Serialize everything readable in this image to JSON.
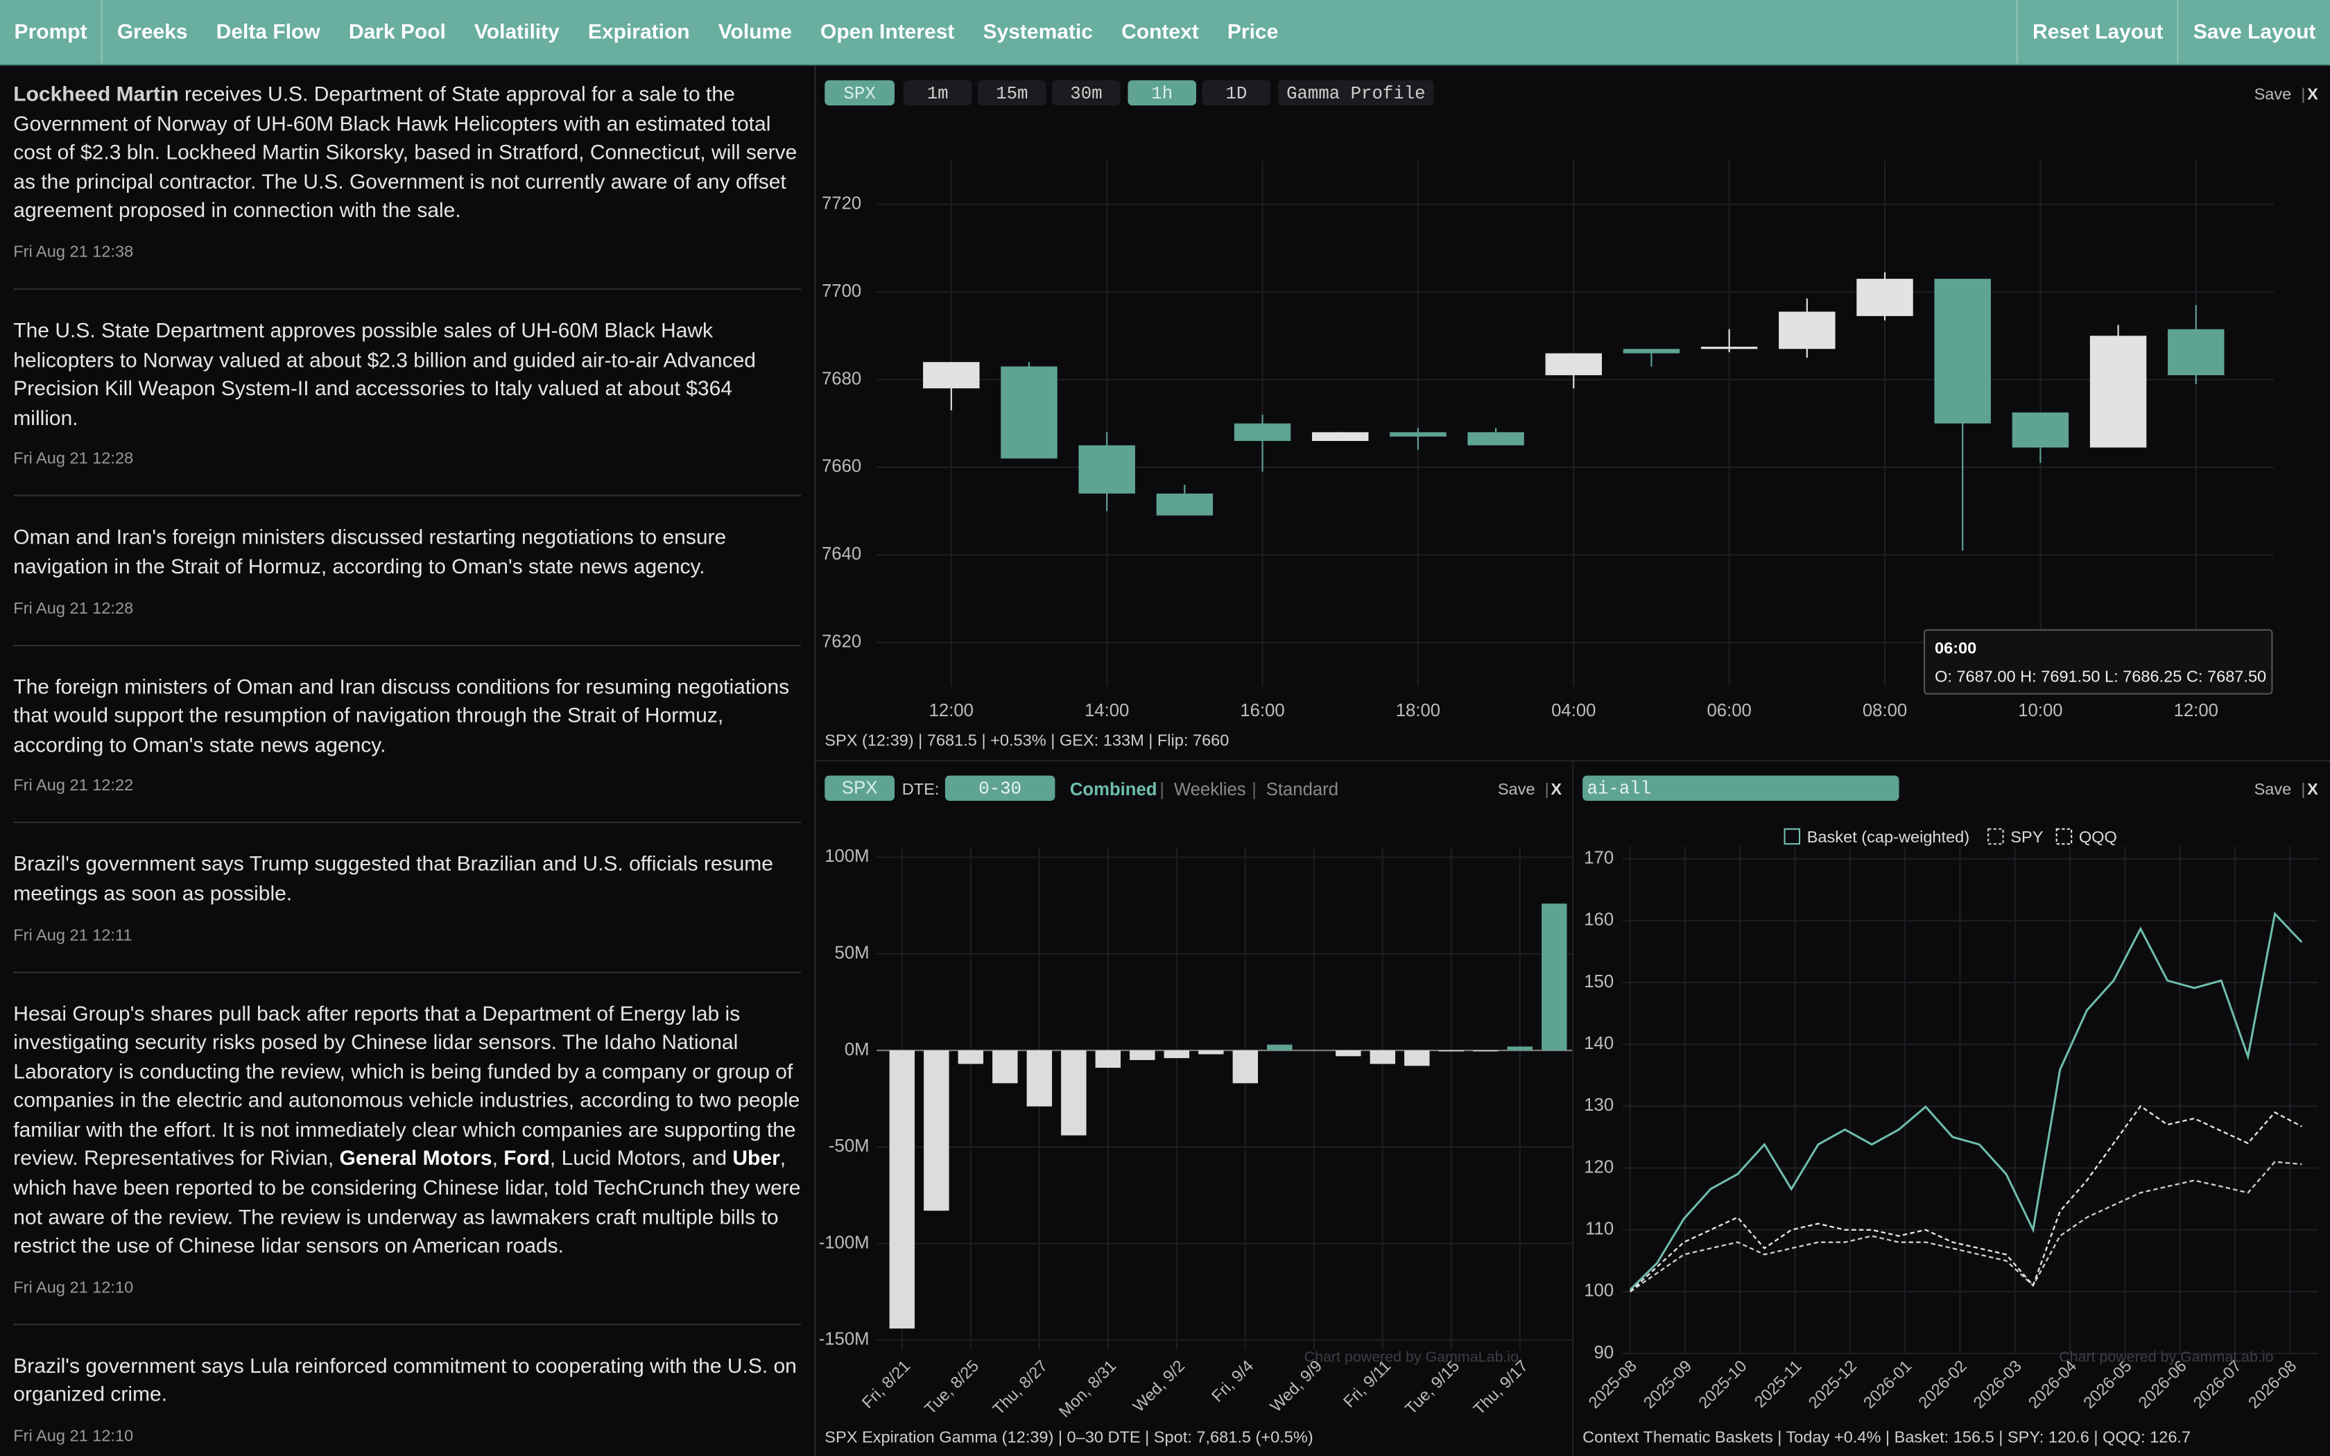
{
  "nav": {
    "items": [
      "Prompt",
      "Greeks",
      "Delta Flow",
      "Dark Pool",
      "Volatility",
      "Expiration",
      "Volume",
      "Open Interest",
      "Systematic",
      "Context",
      "Price"
    ],
    "actions": [
      "Reset Layout",
      "Save Layout"
    ]
  },
  "news": [
    {
      "parts": [
        {
          "text": "Lockheed Martin",
          "bold": true
        },
        {
          "text": " receives U.S. Department of State approval for a sale to the Government of Norway of UH-60M Black Hawk Helicopters with an estimated total cost of $2.3 bln. Lockheed Martin Sikorsky, based in Stratford, Connecticut, will serve as the principal contractor. The U.S. Government is not currently aware of any offset agreement proposed in connection with the sale."
        }
      ],
      "time": "Fri Aug 21 12:38"
    },
    {
      "parts": [
        {
          "text": "The U.S. State Department approves possible sales of UH-60M Black Hawk helicopters to Norway valued at about $2.3 billion and guided air-to-air Advanced Precision Kill Weapon System-II and accessories to Italy valued at about $364 million."
        }
      ],
      "time": "Fri Aug 21 12:28"
    },
    {
      "parts": [
        {
          "text": "Oman and Iran's foreign ministers discussed restarting negotiations to ensure navigation in the Strait of Hormuz, according to Oman's state news agency."
        }
      ],
      "time": "Fri Aug 21 12:28"
    },
    {
      "parts": [
        {
          "text": "The foreign ministers of Oman and Iran discuss conditions for resuming negotiations that would support the resumption of navigation through the Strait of Hormuz, according to Oman's state news agency."
        }
      ],
      "time": "Fri Aug 21 12:22"
    },
    {
      "parts": [
        {
          "text": "Brazil's government says Trump suggested that Brazilian and U.S. officials resume meetings as soon as possible."
        }
      ],
      "time": "Fri Aug 21 12:11"
    },
    {
      "parts": [
        {
          "text": "Hesai Group's shares pull back after reports that a Department of Energy lab is investigating security risks posed by Chinese lidar sensors. The Idaho National Laboratory is conducting the review, which is being funded by a company or group of companies in the electric and autonomous vehicle industries, according to two people familiar with the effort. It is not immediately clear which companies are supporting the review. Representatives for Rivian, "
        },
        {
          "text": "General Motors",
          "bold": true
        },
        {
          "text": ", "
        },
        {
          "text": "Ford",
          "bold": true
        },
        {
          "text": ", Lucid Motors, and "
        },
        {
          "text": "Uber",
          "bold": true
        },
        {
          "text": ", which have been reported to be considering Chinese lidar, told TechCrunch they were not aware of the review. The review is underway as lawmakers craft multiple bills to restrict the use of Chinese lidar sensors on American roads."
        }
      ],
      "time": "Fri Aug 21 12:10"
    },
    {
      "parts": [
        {
          "text": "Brazil's government says Lula reinforced commitment to cooperating with the U.S. on organized crime."
        }
      ],
      "time": "Fri Aug 21 12:10"
    }
  ],
  "panels": [
    {
      "buttons": [
        {
          "label": "SPX",
          "active": true
        },
        {
          "label": "1m"
        },
        {
          "label": "15m"
        },
        {
          "label": "30m"
        },
        {
          "label": "1h",
          "active": true
        },
        {
          "label": "1D"
        },
        {
          "label": "Gamma Profile"
        }
      ],
      "save": "Save",
      "separator": "|",
      "close": "X",
      "tooltip": {
        "title": "06:00",
        "text": "O: 7687.00 H: 7691.50 L: 7686.25 C: 7687.50"
      },
      "status": "SPX (12:39) | 7681.5 | +0.53% | GEX: 133M | Flip: 7660"
    },
    {
      "symbol": "SPX",
      "dte_label": "DTE:",
      "dte": "0-30",
      "modes": [
        {
          "label": "Combined",
          "active": true
        },
        {
          "label": "Weeklies"
        },
        {
          "label": "Standard"
        }
      ],
      "save": "Save",
      "separator": "|",
      "close": "X",
      "status": "SPX Expiration Gamma (12:39) | 0–30 DTE | Spot: 7,681.5 (+0.5%)"
    },
    {
      "query": "ai-all",
      "save": "Save",
      "separator": "|",
      "close": "X",
      "status": "Context Thematic Baskets | Today +0.4% | Basket: 156.5 | SPY: 120.6 | QQQ: 126.7"
    }
  ],
  "chart_data": [
    {
      "type": "candlestick",
      "categories": [
        "12:00",
        null,
        "14:00",
        null,
        "16:00",
        null,
        "18:00",
        null,
        "04:00",
        null,
        "06:00",
        null,
        "08:00",
        null,
        "10:00",
        null,
        "12:00"
      ],
      "open": [
        7678,
        7683,
        7665,
        7654,
        7670,
        7666,
        7668,
        7668,
        7681,
        7687,
        7687,
        7687,
        7694.5,
        7703,
        7672.5,
        7664.5,
        7691.5
      ],
      "high": [
        7684,
        7684,
        7668,
        7656,
        7672,
        7668,
        7669,
        7669,
        7686,
        7687,
        7691.5,
        7698.5,
        7704.5,
        7703,
        7672.5,
        7692.5,
        7697
      ],
      "low": [
        7673,
        7662,
        7650,
        7649,
        7659,
        7666,
        7664,
        7665,
        7678,
        7683,
        7686.25,
        7685,
        7693.5,
        7641,
        7661,
        7664.5,
        7679
      ],
      "close": [
        7684,
        7662,
        7654,
        7649,
        7666,
        7668,
        7667,
        7665,
        7686,
        7686,
        7687.5,
        7695.5,
        7703,
        7670,
        7664.5,
        7690,
        7681
      ],
      "up_color": "#e2e2e2",
      "down_color": "#5fa393",
      "ylim": [
        7610,
        7730
      ],
      "yticks": [
        7620,
        7640,
        7660,
        7680,
        7700,
        7720
      ],
      "grid": true
    },
    {
      "type": "bar",
      "categories": [
        "Fri, 8/21",
        null,
        "Tue, 8/25",
        null,
        "Thu, 8/27",
        null,
        "Mon, 8/31",
        null,
        "Wed, 9/2",
        null,
        "Fri, 9/4",
        null,
        "Wed, 9/9",
        null,
        "Fri, 9/11",
        null,
        "Tue, 9/15",
        null,
        "Thu, 9/17",
        null
      ],
      "values": [
        -144,
        -83,
        -7,
        -17,
        -29,
        -44,
        -9,
        -5,
        -4,
        -2,
        -17,
        3,
        0,
        -3,
        -7,
        -8,
        -0.5,
        -0.5,
        2,
        76
      ],
      "positive_color": "#5fa393",
      "negative_color": "#dcdcdc",
      "ylim": [
        -155,
        105
      ],
      "yticks": [
        {
          "value": 100,
          "label": "100M"
        },
        {
          "value": 50,
          "label": "50M"
        },
        {
          "value": 0,
          "label": "0M"
        },
        {
          "value": -50,
          "label": "-50M"
        },
        {
          "value": -100,
          "label": "-100M"
        },
        {
          "value": -150,
          "label": "-150M"
        }
      ],
      "grid": true,
      "annotation": "Chart powered by GammaLab.io"
    },
    {
      "type": "line",
      "x_labels": [
        "2025-08",
        "2025-09",
        "2025-10",
        "2025-11",
        "2025-12",
        "2026-01",
        "2026-02",
        "2026-03",
        "2026-04",
        "2026-05",
        "2026-06",
        "2026-07",
        "2026-08"
      ],
      "series": [
        {
          "name": "Basket (cap-weighted)",
          "color": "#6fbfab",
          "dashed": false,
          "values": [
            100.3,
            104.6,
            111.8,
            116.6,
            119,
            123.8,
            116.6,
            123.8,
            126.2,
            123.8,
            126.2,
            129.9,
            125,
            123.8,
            119,
            110,
            135.9,
            145.5,
            150.3,
            158.7,
            150.3,
            149.1,
            150.3,
            138,
            161.1,
            156.5
          ]
        },
        {
          "name": "SPY",
          "color": "#cfcfcf",
          "dashed": true,
          "values": [
            100,
            103,
            106,
            107,
            108,
            106,
            107,
            108,
            108,
            109,
            108,
            108,
            107,
            106,
            105,
            101,
            109,
            112,
            114,
            116,
            117,
            118,
            117,
            116,
            121,
            120.6
          ]
        },
        {
          "name": "QQQ",
          "color": "#e6e6e6",
          "dashed": true,
          "values": [
            100,
            104,
            108,
            110,
            112,
            107,
            110,
            111,
            110,
            110,
            109,
            110,
            108,
            107,
            106,
            101,
            113,
            118,
            124,
            130,
            127,
            128,
            126,
            124,
            129,
            126.7
          ]
        }
      ],
      "legend": "top",
      "ylim": [
        90,
        172
      ],
      "yticks": [
        90,
        100,
        110,
        120,
        130,
        140,
        150,
        160,
        170
      ],
      "grid": true,
      "annotation": "Chart powered by GammaLab.io"
    }
  ]
}
